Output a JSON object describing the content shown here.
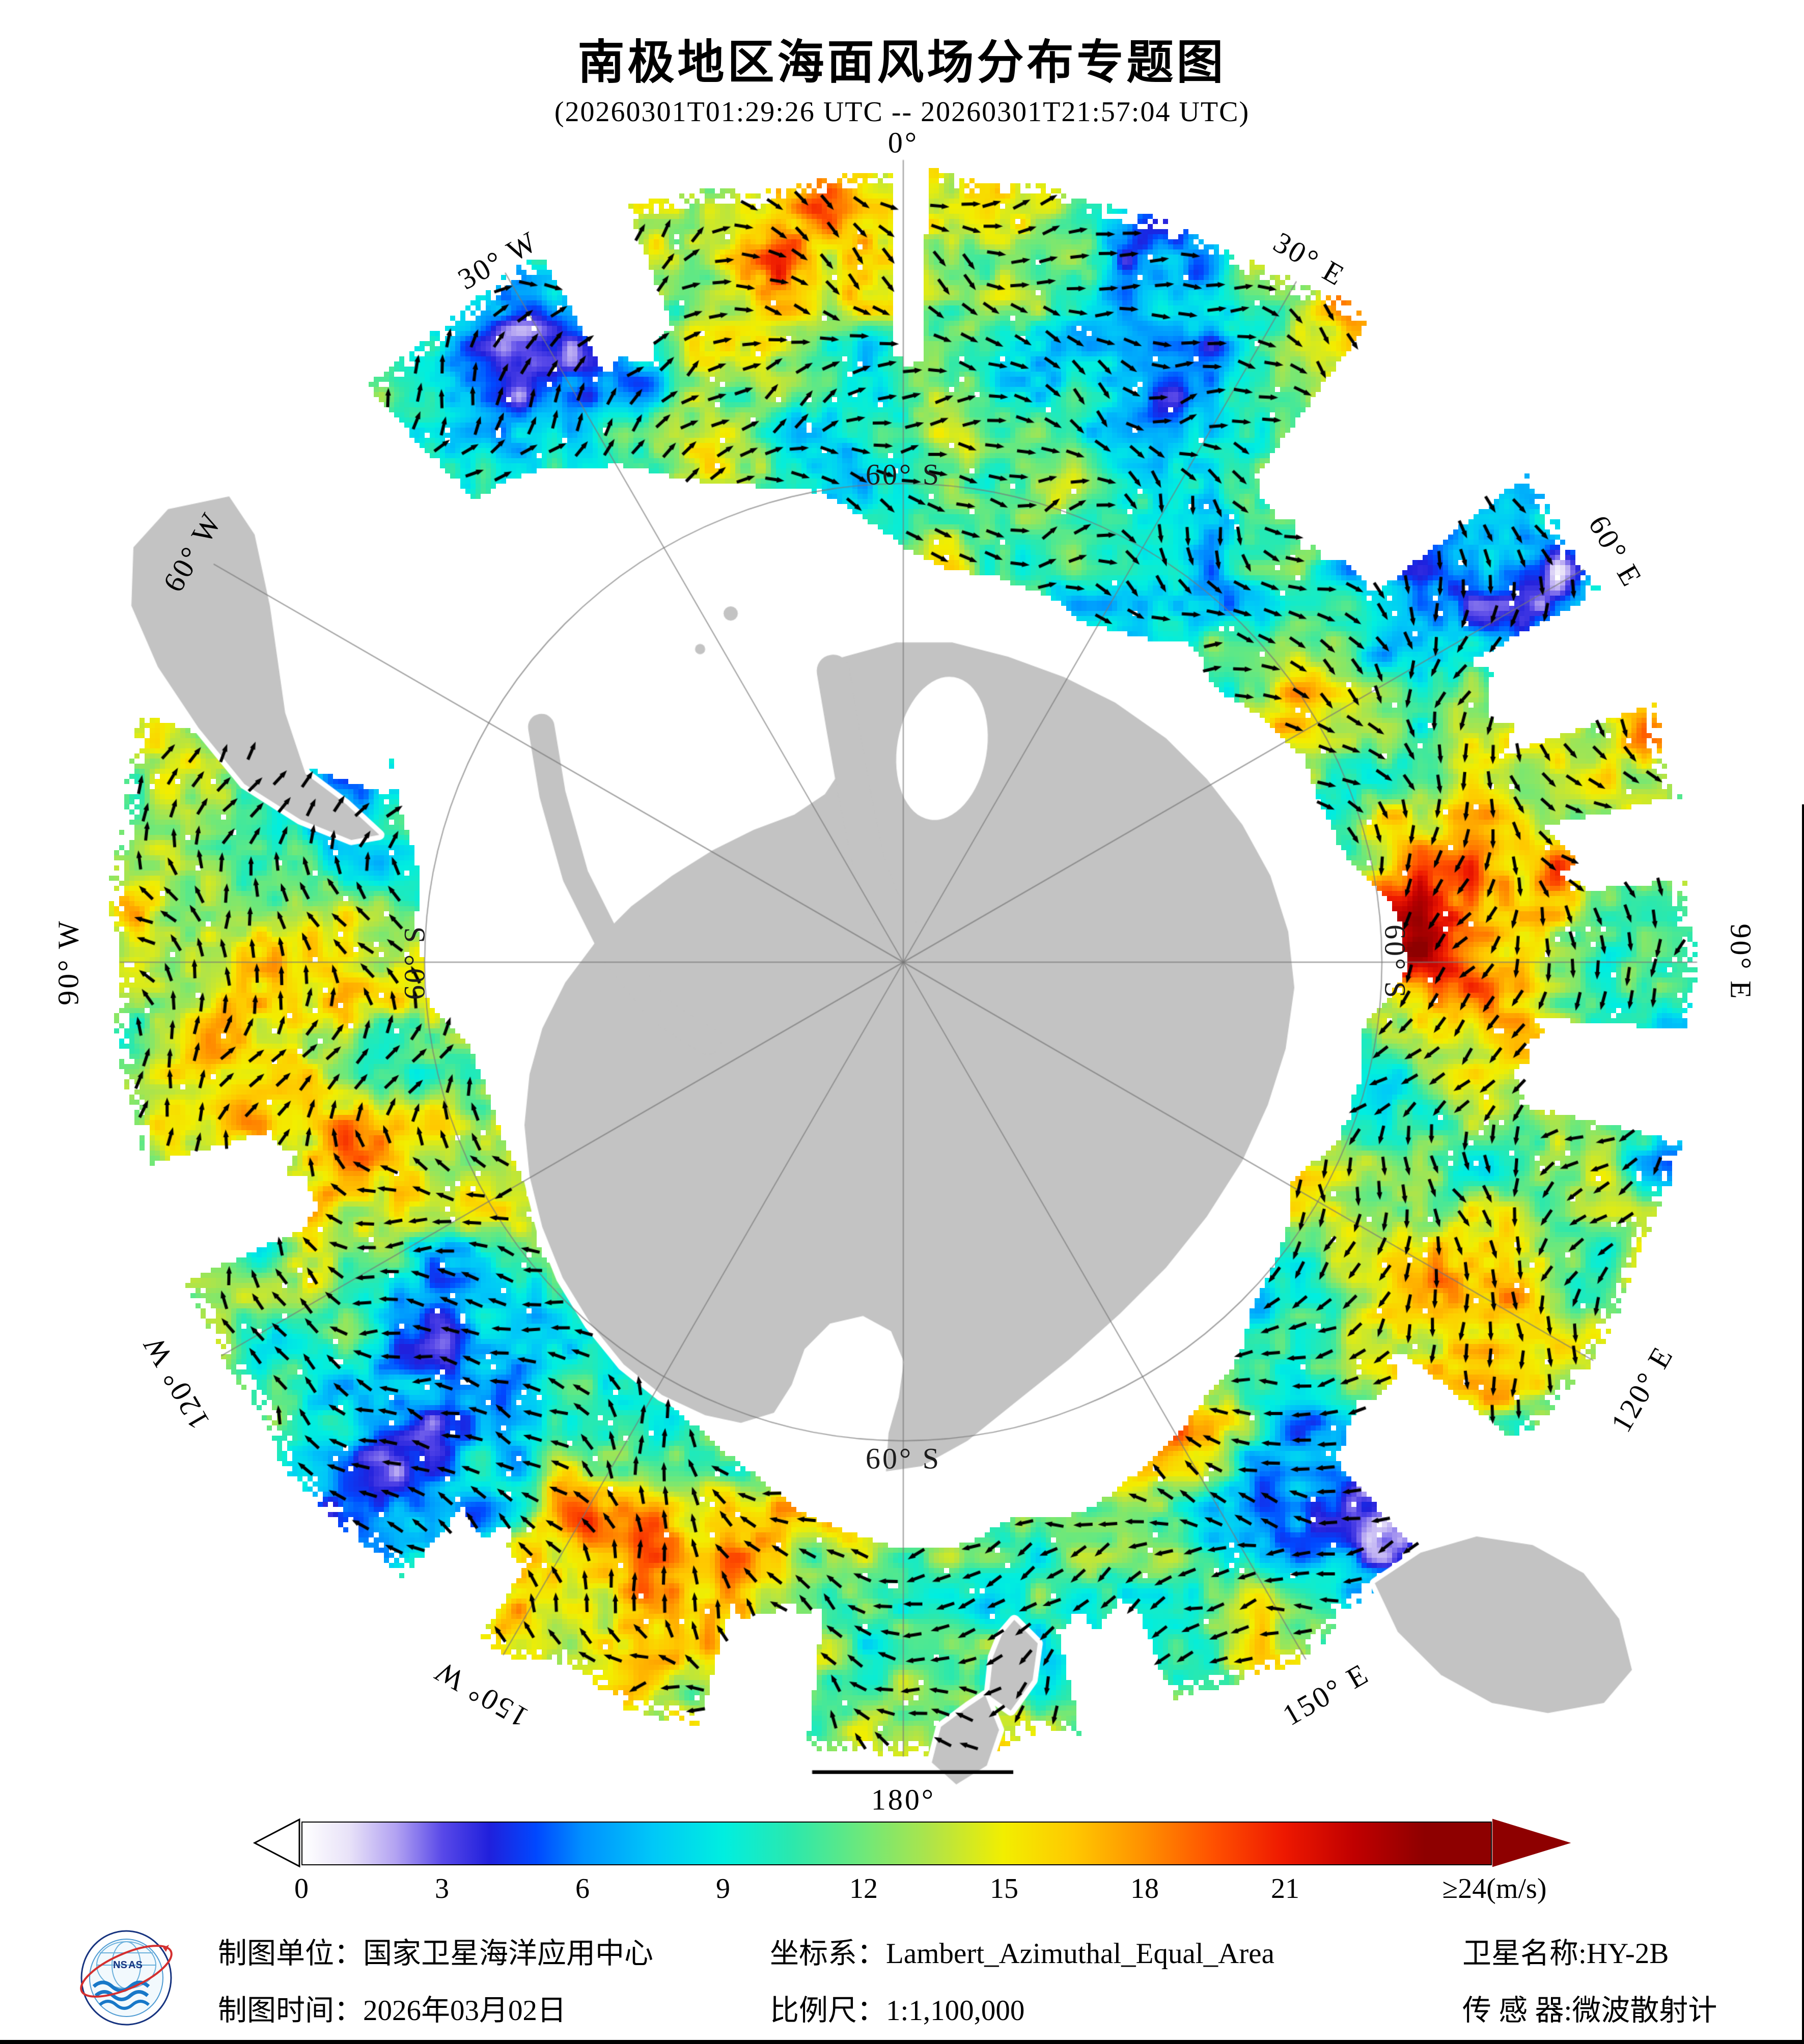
{
  "title": "南极地区海面风场分布专题图",
  "subtitle": "(20260301T01:29:26 UTC -- 20260301T21:57:04 UTC)",
  "map": {
    "longitude_labels": [
      {
        "text": "0°",
        "deg": 0
      },
      {
        "text": "30° E",
        "deg": 30
      },
      {
        "text": "60° E",
        "deg": 60
      },
      {
        "text": "90° E",
        "deg": 90
      },
      {
        "text": "120° E",
        "deg": 120
      },
      {
        "text": "150° E",
        "deg": 150
      },
      {
        "text": "180°",
        "deg": 180
      },
      {
        "text": "150° W",
        "deg": 210
      },
      {
        "text": "120° W",
        "deg": 240
      },
      {
        "text": "90° W",
        "deg": 270
      },
      {
        "text": "60° W",
        "deg": 300
      },
      {
        "text": "30° W",
        "deg": 330
      }
    ],
    "latitude_labels": [
      {
        "text": "60° S",
        "deg": 0
      },
      {
        "text": "60° S",
        "deg": 90
      },
      {
        "text": "60° S",
        "deg": 180
      },
      {
        "text": "60° S",
        "deg": 270
      }
    ]
  },
  "colorbar": {
    "ticks": [
      "0",
      "3",
      "6",
      "9",
      "12",
      "15",
      "18",
      "21"
    ],
    "tick_values": [
      0,
      3,
      6,
      9,
      12,
      15,
      18,
      21
    ],
    "last_tick": "≥24(m/s)",
    "max_value": 24,
    "stops": [
      {
        "v": 0,
        "c": "#ffffff"
      },
      {
        "v": 1,
        "c": "#e8e2f8"
      },
      {
        "v": 2,
        "c": "#b2a2f2"
      },
      {
        "v": 3,
        "c": "#5848e8"
      },
      {
        "v": 4,
        "c": "#2020dc"
      },
      {
        "v": 5,
        "c": "#0048ff"
      },
      {
        "v": 6,
        "c": "#0090ff"
      },
      {
        "v": 7.5,
        "c": "#00c8f8"
      },
      {
        "v": 9,
        "c": "#00eee0"
      },
      {
        "v": 10.5,
        "c": "#2ce8ac"
      },
      {
        "v": 12,
        "c": "#6ee87a"
      },
      {
        "v": 13.5,
        "c": "#b2e446"
      },
      {
        "v": 15,
        "c": "#f2ee00"
      },
      {
        "v": 16.5,
        "c": "#ffc800"
      },
      {
        "v": 18,
        "c": "#ff9000"
      },
      {
        "v": 19.5,
        "c": "#ff5000"
      },
      {
        "v": 21,
        "c": "#ee1800"
      },
      {
        "v": 22.5,
        "c": "#c00000"
      },
      {
        "v": 24,
        "c": "#8e0000"
      }
    ]
  },
  "footer": {
    "col1": [
      {
        "label": "制图单位：",
        "value": "国家卫星海洋应用中心"
      },
      {
        "label": "制图时间：",
        "value": "2026年03月02日"
      }
    ],
    "col2": [
      {
        "label": "坐标系：",
        "value": "Lambert_Azimuthal_Equal_Area"
      },
      {
        "label": "比例尺：",
        "value": "1:1,100,000"
      }
    ],
    "col3": [
      {
        "label": "卫星名称:",
        "value": "HY-2B"
      },
      {
        "label": "传 感 器:",
        "value": "微波散射计"
      }
    ]
  },
  "logo": {
    "name": "NSOAS"
  },
  "colors": {
    "land": "#c3c3c3",
    "arrow": "#000000",
    "graticule": "#8a8a8a",
    "colorbar_end": "#8e0000"
  }
}
